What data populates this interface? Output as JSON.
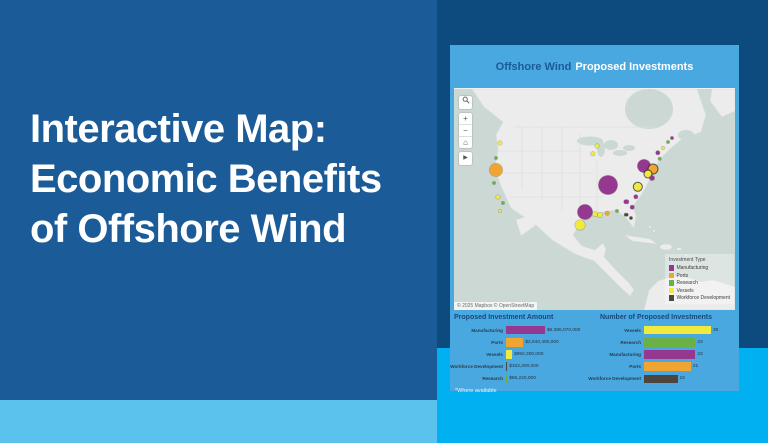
{
  "hero": {
    "lines": [
      "Interactive Map:",
      "Economic Benefits",
      "of Offshore Wind"
    ]
  },
  "colors": {
    "hero_bg": "#1b5b97",
    "right_bg": "#0d4a7e",
    "cyan_bg": "#00b0f0",
    "strip_bg": "#5ac2ec",
    "card_bg": "#4aa8e0",
    "manufacturing": "#94398f",
    "ports": "#f0a431",
    "research": "#6ab044",
    "vessels": "#f1e93d",
    "workforce": "#4c463e"
  },
  "app": {
    "header": {
      "title_navy": "Offshore Wind",
      "title_white": "Proposed Investments"
    },
    "map": {
      "attribution": "© 2025 Mapbox © OpenStreetMap",
      "controls": {
        "zoom_in": "+",
        "zoom_out": "−",
        "home": "⌂",
        "pan": "▶"
      },
      "legend": {
        "title": "Investment Type",
        "items": [
          {
            "label": "Manufacturing",
            "color_key": "manufacturing"
          },
          {
            "label": "Ports",
            "color_key": "ports"
          },
          {
            "label": "Research",
            "color_key": "research"
          },
          {
            "label": "Vessels",
            "color_key": "vessels"
          },
          {
            "label": "Workforce Development",
            "color_key": "workforce"
          }
        ]
      },
      "points": [
        {
          "x": 16.5,
          "y": 24.5,
          "r": 2.0,
          "c": "vessels"
        },
        {
          "x": 15.0,
          "y": 31.0,
          "r": 1.5,
          "c": "research"
        },
        {
          "x": 15.1,
          "y": 36.5,
          "r": 6.5,
          "c": "ports"
        },
        {
          "x": 14.1,
          "y": 42.5,
          "r": 1.5,
          "c": "research"
        },
        {
          "x": 15.8,
          "y": 48.9,
          "r": 2.0,
          "c": "vessels"
        },
        {
          "x": 17.3,
          "y": 51.5,
          "r": 1.5,
          "c": "research"
        },
        {
          "x": 16.2,
          "y": 55.0,
          "r": 1.5,
          "c": "vessels"
        },
        {
          "x": 49.3,
          "y": 29.2,
          "r": 2.2,
          "c": "vessels"
        },
        {
          "x": 51.0,
          "y": 26.0,
          "r": 2.0,
          "c": "vessels"
        },
        {
          "x": 54.9,
          "y": 43.4,
          "r": 9.5,
          "c": "manufacturing"
        },
        {
          "x": 67.6,
          "y": 34.7,
          "r": 6.5,
          "c": "manufacturing"
        },
        {
          "x": 70.8,
          "y": 36.1,
          "r": 4.5,
          "c": "ports",
          "ring": true
        },
        {
          "x": 69.0,
          "y": 38.6,
          "r": 3.5,
          "c": "vessels",
          "ring": true
        },
        {
          "x": 70.4,
          "y": 40.4,
          "r": 2.5,
          "c": "manufacturing"
        },
        {
          "x": 73.2,
          "y": 31.5,
          "r": 1.8,
          "c": "research"
        },
        {
          "x": 72.5,
          "y": 28.8,
          "r": 2.2,
          "c": "manufacturing"
        },
        {
          "x": 74.5,
          "y": 26.5,
          "r": 1.5,
          "c": "vessels"
        },
        {
          "x": 76.0,
          "y": 24.0,
          "r": 1.5,
          "c": "research"
        },
        {
          "x": 77.5,
          "y": 22.0,
          "r": 1.5,
          "c": "manufacturing"
        },
        {
          "x": 65.5,
          "y": 44.3,
          "r": 4.2,
          "c": "vessels",
          "ring": true
        },
        {
          "x": 64.8,
          "y": 48.9,
          "r": 2.2,
          "c": "manufacturing"
        },
        {
          "x": 61.3,
          "y": 51.1,
          "r": 2.2,
          "c": "manufacturing"
        },
        {
          "x": 46.5,
          "y": 55.7,
          "r": 7.5,
          "c": "manufacturing"
        },
        {
          "x": 50.0,
          "y": 56.4,
          "r": 2.5,
          "c": "vessels"
        },
        {
          "x": 52.1,
          "y": 56.8,
          "r": 2.5,
          "c": "vessels"
        },
        {
          "x": 54.5,
          "y": 56.2,
          "r": 1.8,
          "c": "ports"
        },
        {
          "x": 58.1,
          "y": 55.3,
          "r": 1.5,
          "c": "research"
        },
        {
          "x": 61.3,
          "y": 56.8,
          "r": 1.8,
          "c": "workforce"
        },
        {
          "x": 63.4,
          "y": 53.4,
          "r": 1.8,
          "c": "manufacturing"
        },
        {
          "x": 62.9,
          "y": 58.5,
          "r": 1.5,
          "c": "workforce"
        },
        {
          "x": 44.7,
          "y": 61.6,
          "r": 5.0,
          "c": "vessels"
        }
      ]
    }
  },
  "chart_data": [
    {
      "type": "bar",
      "orientation": "horizontal",
      "title": "Proposed Investment Amount",
      "categories": [
        "Manufacturing",
        "Ports",
        "Vessels",
        "Workforce Development",
        "Research"
      ],
      "values": [
        6385070000,
        2840400000,
        992300000,
        102200000,
        86220000
      ],
      "value_labels": [
        "$6,385,070,000",
        "$2,840,400,000",
        "$992,300,000",
        "$102,200,000",
        "$86,220,000"
      ],
      "color_keys": [
        "manufacturing",
        "ports",
        "vessels",
        "workforce",
        "research"
      ],
      "footnote": "*Where available"
    },
    {
      "type": "bar",
      "orientation": "horizontal",
      "title": "Number of Proposed Investments",
      "categories": [
        "Vessels",
        "Research",
        "Manufacturing",
        "Ports",
        "Workforce Development"
      ],
      "values": [
        30,
        23,
        23,
        21,
        15
      ],
      "value_labels": [
        "30",
        "23",
        "23",
        "21",
        "15"
      ],
      "color_keys": [
        "vessels",
        "research",
        "manufacturing",
        "ports",
        "workforce"
      ]
    }
  ]
}
